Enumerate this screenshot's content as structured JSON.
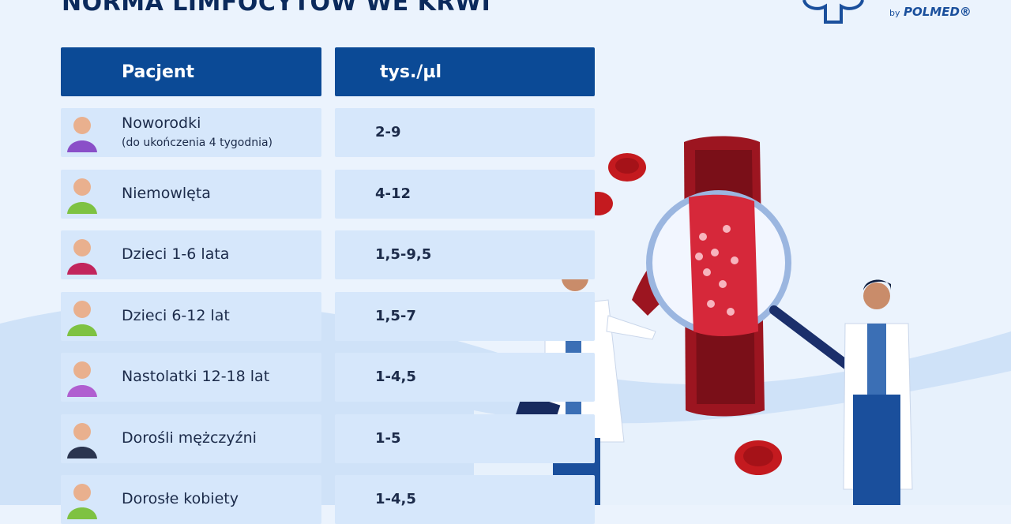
{
  "header": {
    "title": "NORMA LIMFOCYTÓW WE KRWI",
    "logo_by": "by",
    "logo_brand": "POLMED®"
  },
  "table": {
    "columns": [
      "Pacjent",
      "tys./µl"
    ],
    "rows": [
      {
        "patient": "Noworodki",
        "note": "(do ukończenia 4 tygodnia)",
        "value": "2-9"
      },
      {
        "patient": "Niemowlęta",
        "value": "4-12"
      },
      {
        "patient": "Dzieci 1-6 lata",
        "value": "1,5-9,5"
      },
      {
        "patient": "Dzieci 6-12 lat",
        "value": "1,5-7"
      },
      {
        "patient": "Nastolatki 12-18 lat",
        "value": "1-4,5"
      },
      {
        "patient": "Dorośli mężczyźni",
        "value": "1-5"
      },
      {
        "patient": "Dorosłe kobiety",
        "value": "1-4,5"
      }
    ]
  }
}
